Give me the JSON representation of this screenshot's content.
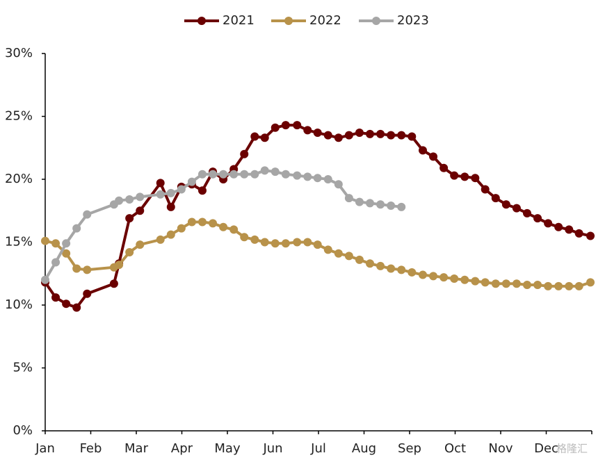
{
  "chart_data": {
    "type": "line",
    "xlim": [
      0,
      12
    ],
    "xticks": [
      {
        "value": 0,
        "label": "Jan"
      },
      {
        "value": 1,
        "label": "Feb"
      },
      {
        "value": 2,
        "label": "Mar"
      },
      {
        "value": 3,
        "label": "Apr"
      },
      {
        "value": 4,
        "label": "May"
      },
      {
        "value": 5,
        "label": "Jun"
      },
      {
        "value": 6,
        "label": "Jul"
      },
      {
        "value": 7,
        "label": "Aug"
      },
      {
        "value": 8,
        "label": "Sep"
      },
      {
        "value": 9,
        "label": "Oct"
      },
      {
        "value": 10,
        "label": "Nov"
      },
      {
        "value": 11,
        "label": "Dec"
      },
      12
    ],
    "ylim": [
      0,
      30
    ],
    "yticks": [
      {
        "value": 0,
        "label": "0%"
      },
      {
        "value": 5,
        "label": "5%"
      },
      {
        "value": 10,
        "label": "10%"
      },
      {
        "value": 15,
        "label": "15%"
      },
      {
        "value": 20,
        "label": "20%"
      },
      {
        "value": 25,
        "label": "25%"
      },
      {
        "value": 30,
        "label": "30%"
      }
    ],
    "grid": false,
    "legend": "top",
    "watermark": "格隆汇",
    "series": [
      {
        "name": "2021",
        "color": "#6b0000",
        "x": [
          0,
          0.23,
          0.46,
          0.69,
          0.92,
          1.51,
          1.62,
          1.85,
          2.08,
          2.53,
          2.76,
          2.99,
          3.22,
          3.45,
          3.68,
          3.91,
          4.14,
          4.37,
          4.6,
          4.82,
          5.05,
          5.28,
          5.53,
          5.76,
          5.98,
          6.21,
          6.44,
          6.67,
          6.9,
          7.13,
          7.36,
          7.59,
          7.82,
          8.05,
          8.29,
          8.52,
          8.75,
          8.98,
          9.21,
          9.44,
          9.66,
          9.89,
          10.12,
          10.35,
          10.58,
          10.81,
          11.04,
          11.27,
          11.5,
          11.72,
          11.97
        ],
        "values": [
          11.8,
          10.6,
          10.1,
          9.8,
          10.9,
          11.7,
          13.3,
          16.9,
          17.5,
          19.7,
          17.8,
          19.4,
          19.6,
          19.1,
          20.6,
          20.0,
          20.8,
          22.0,
          23.4,
          23.3,
          24.1,
          24.3,
          24.3,
          23.9,
          23.7,
          23.5,
          23.3,
          23.5,
          23.7,
          23.6,
          23.6,
          23.5,
          23.5,
          23.4,
          22.3,
          21.8,
          20.9,
          20.3,
          20.2,
          20.1,
          19.2,
          18.5,
          18.0,
          17.7,
          17.3,
          16.9,
          16.5,
          16.2,
          16.0,
          15.7,
          15.5
        ]
      },
      {
        "name": "2022",
        "color": "#b8924a",
        "x": [
          0,
          0.23,
          0.46,
          0.69,
          0.92,
          1.51,
          1.62,
          1.85,
          2.08,
          2.53,
          2.76,
          2.99,
          3.22,
          3.45,
          3.68,
          3.91,
          4.14,
          4.37,
          4.6,
          4.82,
          5.05,
          5.28,
          5.53,
          5.76,
          5.98,
          6.21,
          6.44,
          6.67,
          6.9,
          7.13,
          7.36,
          7.59,
          7.82,
          8.05,
          8.29,
          8.52,
          8.75,
          8.98,
          9.21,
          9.44,
          9.66,
          9.89,
          10.12,
          10.35,
          10.58,
          10.81,
          11.04,
          11.27,
          11.5,
          11.72,
          11.97
        ],
        "values": [
          15.1,
          14.9,
          14.1,
          12.9,
          12.8,
          13.0,
          13.2,
          14.2,
          14.8,
          15.2,
          15.6,
          16.1,
          16.6,
          16.6,
          16.5,
          16.2,
          16.0,
          15.4,
          15.2,
          15.0,
          14.9,
          14.9,
          15.0,
          15.0,
          14.8,
          14.4,
          14.1,
          13.9,
          13.6,
          13.3,
          13.1,
          12.9,
          12.8,
          12.6,
          12.4,
          12.3,
          12.2,
          12.1,
          12.0,
          11.9,
          11.8,
          11.7,
          11.7,
          11.7,
          11.6,
          11.6,
          11.5,
          11.5,
          11.5,
          11.5,
          11.8
        ]
      },
      {
        "name": "2023",
        "color": "#a6a6a6",
        "x": [
          0,
          0.23,
          0.46,
          0.69,
          0.92,
          1.51,
          1.62,
          1.85,
          2.08,
          2.53,
          2.76,
          2.99,
          3.22,
          3.45,
          3.68,
          3.91,
          4.14,
          4.37,
          4.6,
          4.82,
          5.05,
          5.28,
          5.53,
          5.76,
          5.98,
          6.21,
          6.44,
          6.67,
          6.9,
          7.13,
          7.36,
          7.59,
          7.82
        ],
        "values": [
          12.0,
          13.4,
          14.9,
          16.1,
          17.2,
          18.0,
          18.3,
          18.4,
          18.6,
          18.8,
          18.9,
          19.2,
          19.8,
          20.4,
          20.4,
          20.4,
          20.4,
          20.4,
          20.4,
          20.7,
          20.6,
          20.4,
          20.3,
          20.2,
          20.1,
          20.0,
          19.6,
          18.5,
          18.2,
          18.1,
          18.0,
          17.9,
          17.8
        ]
      }
    ]
  }
}
